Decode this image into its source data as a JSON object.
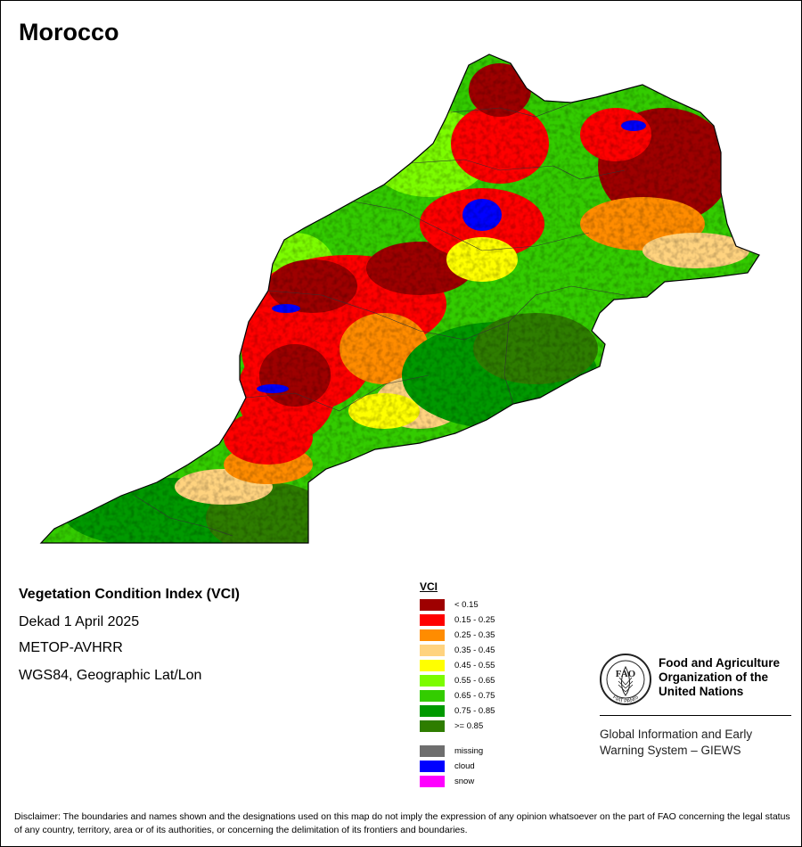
{
  "map": {
    "title": "Morocco"
  },
  "info": {
    "title": "Vegetation Condition Index (VCI)",
    "dekad": "Dekad 1 April 2025",
    "sensor": "METOP-AVHRR",
    "projection": "WGS84, Geographic Lat/Lon"
  },
  "legend": {
    "title": "VCI",
    "classes": [
      {
        "label": "< 0.15",
        "color": "#9e0000"
      },
      {
        "label": "0.15 - 0.25",
        "color": "#ff0000"
      },
      {
        "label": "0.25 - 0.35",
        "color": "#ff8c00"
      },
      {
        "label": "0.35 - 0.45",
        "color": "#ffd37f"
      },
      {
        "label": "0.45 - 0.55",
        "color": "#ffff00"
      },
      {
        "label": "0.55 - 0.65",
        "color": "#7cfc00"
      },
      {
        "label": "0.65 - 0.75",
        "color": "#33cc00"
      },
      {
        "label": "0.75 - 0.85",
        "color": "#009900"
      },
      {
        "label": ">= 0.85",
        "color": "#2e7d00"
      }
    ],
    "special": [
      {
        "label": "missing",
        "color": "#6e6e6e"
      },
      {
        "label": "cloud",
        "color": "#0000ff"
      },
      {
        "label": "snow",
        "color": "#ff00ff"
      }
    ]
  },
  "org": {
    "name": "Food and Agriculture Organization of the United Nations",
    "logo_text": "FAO",
    "logo_motto": "FIAT PANIS",
    "system": "Global Information and Early Warning System – GIEWS"
  },
  "disclaimer": "Disclaimer: The boundaries and names shown and the designations used on this map do not imply the expression of any opinion whatsoever on the part of FAO concerning the legal status of any country, territory, area or of its authorities, or concerning the delimitation of its frontiers and boundaries."
}
